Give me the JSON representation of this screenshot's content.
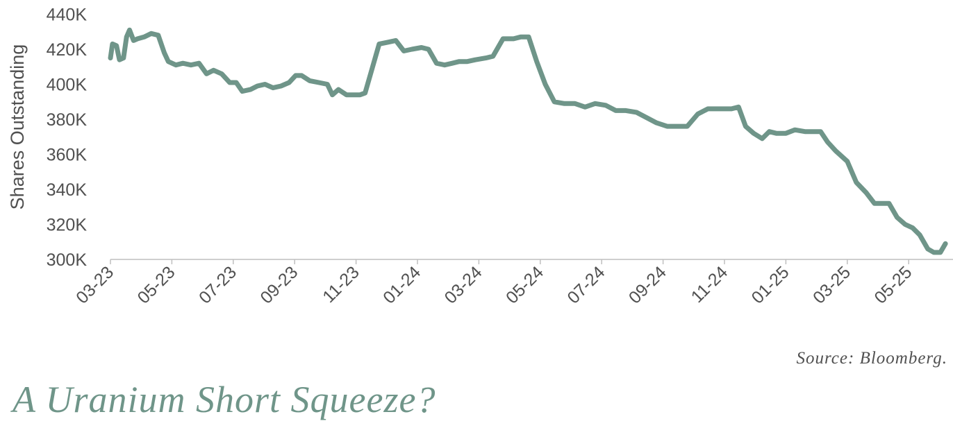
{
  "chart_data": {
    "type": "line",
    "ylabel": "Shares Outstanding",
    "xlabel": "",
    "title": "",
    "ylim": [
      300000,
      440000
    ],
    "y_ticks": [
      "300K",
      "320K",
      "340K",
      "360K",
      "380K",
      "400K",
      "420K",
      "440K"
    ],
    "x_ticks": [
      "03-23",
      "05-23",
      "07-23",
      "09-23",
      "11-23",
      "01-24",
      "03-24",
      "05-24",
      "07-24",
      "09-24",
      "11-24",
      "01-25",
      "03-25",
      "05-25"
    ],
    "x_range": [
      "2023-03",
      "2025-06"
    ],
    "line_color": "#6f9589",
    "series": [
      {
        "x": [
          "2023-03-01",
          "2023-03-03",
          "2023-03-07",
          "2023-03-10",
          "2023-03-14",
          "2023-03-17",
          "2023-03-20",
          "2023-03-24",
          "2023-03-28",
          "2023-04-04",
          "2023-04-11",
          "2023-04-18",
          "2023-04-24",
          "2023-04-28",
          "2023-05-05",
          "2023-05-12",
          "2023-05-20",
          "2023-05-28",
          "2023-06-05",
          "2023-06-12",
          "2023-06-20",
          "2023-06-28",
          "2023-07-04",
          "2023-07-10",
          "2023-07-18",
          "2023-07-25",
          "2023-08-02",
          "2023-08-10",
          "2023-08-18",
          "2023-08-26",
          "2023-09-02",
          "2023-09-08",
          "2023-09-16",
          "2023-09-25",
          "2023-10-03",
          "2023-10-08",
          "2023-10-14",
          "2023-10-22",
          "2023-10-30",
          "2023-11-05",
          "2023-11-10",
          "2023-11-16",
          "2023-11-24",
          "2023-12-02",
          "2023-12-10",
          "2023-12-18",
          "2023-12-26",
          "2024-01-05",
          "2024-01-12",
          "2024-01-20",
          "2024-01-28",
          "2024-02-05",
          "2024-02-12",
          "2024-02-20",
          "2024-02-28",
          "2024-03-08",
          "2024-03-15",
          "2024-03-25",
          "2024-04-05",
          "2024-04-12",
          "2024-04-20",
          "2024-04-28",
          "2024-05-06",
          "2024-05-15",
          "2024-05-25",
          "2024-06-05",
          "2024-06-15",
          "2024-06-25",
          "2024-07-05",
          "2024-07-15",
          "2024-07-25",
          "2024-08-05",
          "2024-08-15",
          "2024-08-25",
          "2024-09-05",
          "2024-09-15",
          "2024-09-25",
          "2024-10-05",
          "2024-10-15",
          "2024-10-25",
          "2024-11-01",
          "2024-11-08",
          "2024-11-15",
          "2024-11-22",
          "2024-11-30",
          "2024-12-08",
          "2024-12-15",
          "2024-12-22",
          "2025-01-01",
          "2025-01-10",
          "2025-01-20",
          "2025-01-28",
          "2025-02-05",
          "2025-02-12",
          "2025-02-20",
          "2025-03-01",
          "2025-03-10",
          "2025-03-20",
          "2025-03-28",
          "2025-04-05",
          "2025-04-12",
          "2025-04-20",
          "2025-04-28",
          "2025-05-05",
          "2025-05-12",
          "2025-05-20",
          "2025-05-26",
          "2025-06-02",
          "2025-06-07"
        ],
        "y": [
          415000,
          423000,
          422000,
          414000,
          415000,
          427000,
          431000,
          425000,
          426000,
          427000,
          429000,
          428000,
          418000,
          413000,
          411000,
          412000,
          411000,
          412000,
          406000,
          408000,
          406000,
          401000,
          401000,
          396000,
          397000,
          399000,
          400000,
          398000,
          399000,
          401000,
          405000,
          405000,
          402000,
          401000,
          400000,
          394000,
          397000,
          394000,
          394000,
          394000,
          395000,
          407000,
          423000,
          424000,
          425000,
          419000,
          420000,
          421000,
          420000,
          412000,
          411000,
          412000,
          413000,
          413000,
          414000,
          415000,
          416000,
          426000,
          426000,
          427000,
          427000,
          413000,
          400000,
          390000,
          389000,
          389000,
          387000,
          389000,
          388000,
          385000,
          385000,
          384000,
          381000,
          378000,
          376000,
          376000,
          376000,
          383000,
          386000,
          386000,
          386000,
          386000,
          387000,
          376000,
          372000,
          369000,
          373000,
          372000,
          372000,
          374000,
          373000,
          373000,
          373000,
          367000,
          362000,
          356000,
          344000,
          338000,
          332000,
          332000,
          332000,
          324000,
          320000,
          318000,
          314000,
          306000,
          304000,
          304000,
          309000
        ]
      }
    ]
  },
  "source_text": "Source: Bloomberg.",
  "headline": "A Uranium Short Squeeze?"
}
